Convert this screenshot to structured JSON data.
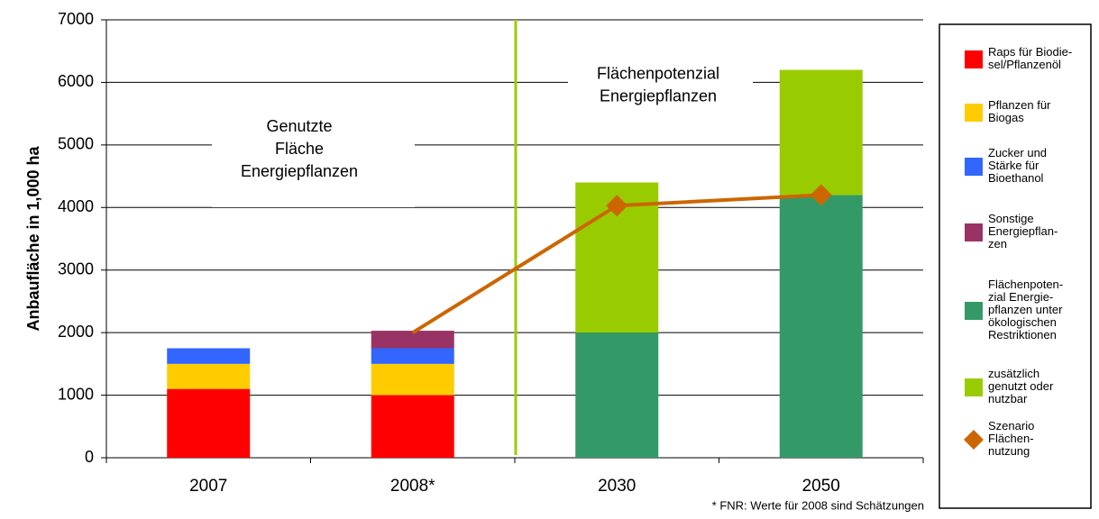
{
  "chart_data": {
    "type": "bar",
    "y_axis_label": "Anbaufläche in 1,000 ha",
    "categories": [
      "2007",
      "2008*",
      "2030",
      "2050"
    ],
    "series": [
      {
        "name": "Raps für Biodie-\nsel/Pflanzenöl",
        "color": "#ff0000",
        "values": [
          1100,
          1000,
          null,
          null
        ]
      },
      {
        "name": "Pflanzen für\nBiogas",
        "color": "#ffcc00",
        "values": [
          400,
          500,
          null,
          null
        ]
      },
      {
        "name": "Zucker und\nStärke für\nBioethanol",
        "color": "#3366ff",
        "values": [
          250,
          250,
          null,
          null
        ]
      },
      {
        "name": "Sonstige\nEnergiepflan-\nzen",
        "color": "#993366",
        "values": [
          null,
          280,
          null,
          null
        ]
      },
      {
        "name": "Flächenpoten-\nzial Energie-\npflanzen unter\nökologischen\nRestriktionen",
        "color": "#339966",
        "values": [
          null,
          null,
          2000,
          4200
        ]
      },
      {
        "name": "zusätzlich\ngenutzt oder\nnutzbar",
        "color": "#99cc00",
        "values": [
          null,
          null,
          2400,
          2000
        ]
      },
      {
        "name": "Szenario\nFlächen-\nnutzung",
        "color": "#cc6600",
        "type": "line",
        "values": [
          null,
          2000,
          4030,
          4200
        ]
      }
    ],
    "ylim": [
      0,
      7000
    ],
    "yticks": [
      0,
      1000,
      2000,
      3000,
      4000,
      5000,
      6000,
      7000
    ],
    "grid": true,
    "annotations": [
      "Genutzte\nFläche\nEnergiepflanzen",
      "Flächenpotenzial\nEnergiepflanzen"
    ],
    "footnote": "* FNR: Werte für 2008 sind Schätzungen"
  }
}
